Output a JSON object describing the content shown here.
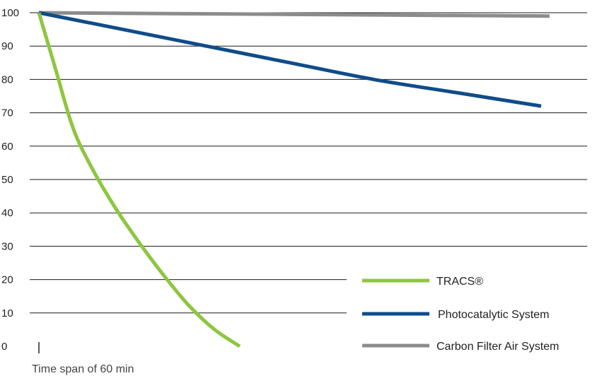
{
  "chart_data": {
    "type": "line",
    "title": "",
    "xlabel": "Time span of 60 min",
    "ylabel": "",
    "ylim": [
      0,
      100
    ],
    "xlim": [
      0,
      60
    ],
    "yticks": [
      "0",
      "10",
      "20",
      "30",
      "40",
      "50",
      "60",
      "70",
      "80",
      "90",
      "100"
    ],
    "grid": true,
    "legend_position": "bottom-right",
    "series": [
      {
        "name": "TRACS®",
        "color": "#8dc63f",
        "x": [
          0,
          2,
          4,
          6,
          9,
          12,
          15,
          18,
          21,
          24
        ],
        "y": [
          100,
          83,
          66,
          55,
          42,
          31,
          21,
          12,
          5,
          0
        ]
      },
      {
        "name": "Photocatalytic System",
        "color": "#0f4c8a",
        "x": [
          0,
          10,
          20,
          30,
          40,
          50,
          60
        ],
        "y": [
          100,
          95,
          90,
          85,
          80,
          76,
          72
        ]
      },
      {
        "name": "Carbon Filter Air System",
        "color": "#8c8c8c",
        "x": [
          0,
          30,
          61
        ],
        "y": [
          100,
          99.5,
          99
        ]
      }
    ]
  }
}
